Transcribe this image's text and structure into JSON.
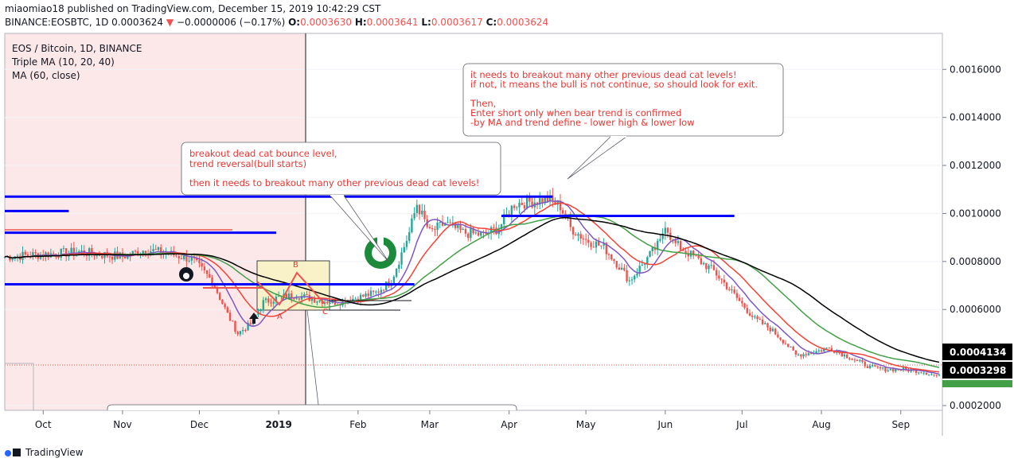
{
  "header": {
    "publisher": "miaomiao18 published on TradingView.com, December 15, 2019 10:42:29 CST",
    "symbol": "BINANCE:EOSBTC, 1D",
    "price": "0.0003624",
    "change_arrow": "▼",
    "change": "−0.0000006 (−0.17%)",
    "o_label": "O:",
    "o_value": "0.0003630",
    "h_label": "H:",
    "h_value": "0.0003641",
    "l_label": "L:",
    "l_value": "0.0003617",
    "c_label": "C:",
    "c_value": "0.0003624"
  },
  "legend": {
    "title": "EOS / Bitcoin, 1D, BINANCE",
    "ma1": "Triple MA (10, 20, 40)",
    "ma2": "MA (60, close)"
  },
  "annotations": {
    "box1": [
      "breakout dead cat bounce level,",
      "trend reversal(bull starts)",
      "",
      "then it needs to breakout many other previous dead cat levels!"
    ],
    "box2": [
      "it needs to breakout many other previous dead cat levels!",
      "if not, it means the bull is not continue, so should look for exit.",
      "",
      "Then,",
      "Enter short only when bear trend is confirmed",
      "-by MA and trend define - lower high & lower low"
    ],
    "points": [
      "B",
      "A",
      "C"
    ]
  },
  "price_tags": {
    "ma_tag": "0.0004134",
    "last_tag": "0.0003298"
  },
  "footer": {
    "brand": "TradingView"
  },
  "colors": {
    "up": "#26a69a",
    "down": "#ef5350",
    "ma10": "#7e57c2",
    "ma20": "#f44336",
    "ma40": "#43a047",
    "ma60": "#000000",
    "level": "#0000ff",
    "note_text": "#e53935",
    "highlight": "#f9f1c8",
    "history_bg": "#fce8e8"
  },
  "chart_data": {
    "type": "candlestick",
    "title": "EOS / Bitcoin, 1D, BINANCE",
    "y_ticks": [
      "0.0016000",
      "0.0014000",
      "0.0012000",
      "0.0010000",
      "0.0008000",
      "0.0006000",
      "0.0002000"
    ],
    "ylim": [
      0.00018,
      0.00175
    ],
    "x_ticks": [
      "Oct",
      "Nov",
      "Dec",
      "2019",
      "Feb",
      "Mar",
      "Apr",
      "May",
      "Jun",
      "Jul",
      "Aug",
      "Sep"
    ],
    "x_tick_dates": [
      "2018-10-01",
      "2018-11-01",
      "2018-12-01",
      "2019-01-01",
      "2019-02-01",
      "2019-03-01",
      "2019-04-01",
      "2019-05-01",
      "2019-06-01",
      "2019-07-01",
      "2019-08-01",
      "2019-09-01"
    ],
    "price_path": [
      [
        "2018-09-16",
        0.00082
      ],
      [
        "2018-10-01",
        0.00083
      ],
      [
        "2018-10-15",
        0.00084
      ],
      [
        "2018-11-01",
        0.00082
      ],
      [
        "2018-11-10",
        0.00085
      ],
      [
        "2018-11-20",
        0.00083
      ],
      [
        "2018-11-28",
        0.00081
      ],
      [
        "2018-12-06",
        0.00072
      ],
      [
        "2018-12-12",
        0.00058
      ],
      [
        "2018-12-16",
        0.0005
      ],
      [
        "2018-12-21",
        0.00054
      ],
      [
        "2018-12-26",
        0.00063
      ],
      [
        "2019-01-01",
        0.00065
      ],
      [
        "2019-01-08",
        0.00066
      ],
      [
        "2019-01-16",
        0.00064
      ],
      [
        "2019-01-24",
        0.00063
      ],
      [
        "2019-02-01",
        0.00065
      ],
      [
        "2019-02-08",
        0.00067
      ],
      [
        "2019-02-14",
        0.00072
      ],
      [
        "2019-02-21",
        0.00092
      ],
      [
        "2019-02-24",
        0.00104
      ],
      [
        "2019-03-01",
        0.00092
      ],
      [
        "2019-03-07",
        0.00096
      ],
      [
        "2019-03-14",
        0.00092
      ],
      [
        "2019-03-22",
        0.00091
      ],
      [
        "2019-03-28",
        0.00094
      ],
      [
        "2019-04-03",
        0.00104
      ],
      [
        "2019-04-10",
        0.00105
      ],
      [
        "2019-04-16",
        0.00106
      ],
      [
        "2019-04-21",
        0.00103
      ],
      [
        "2019-04-25",
        0.00094
      ],
      [
        "2019-05-01",
        0.00089
      ],
      [
        "2019-05-08",
        0.00086
      ],
      [
        "2019-05-14",
        0.00078
      ],
      [
        "2019-05-18",
        0.00072
      ],
      [
        "2019-05-24",
        0.0008
      ],
      [
        "2019-05-30",
        0.00088
      ],
      [
        "2019-06-01",
        0.00096
      ],
      [
        "2019-06-04",
        0.00088
      ],
      [
        "2019-06-12",
        0.00082
      ],
      [
        "2019-06-20",
        0.00076
      ],
      [
        "2019-06-28",
        0.00066
      ],
      [
        "2019-07-06",
        0.00056
      ],
      [
        "2019-07-12",
        0.00052
      ],
      [
        "2019-07-18",
        0.00046
      ],
      [
        "2019-07-22",
        0.00041
      ],
      [
        "2019-07-28",
        0.00042
      ],
      [
        "2019-08-04",
        0.00044
      ],
      [
        "2019-08-12",
        0.0004
      ],
      [
        "2019-08-20",
        0.00036
      ],
      [
        "2019-08-26",
        0.00035
      ],
      [
        "2019-09-02",
        0.00035
      ],
      [
        "2019-09-10",
        0.00034
      ],
      [
        "2019-09-16",
        0.00032
      ]
    ],
    "levels": [
      {
        "from": "2018-09-16",
        "to": "2019-04-18",
        "value": 0.00107
      },
      {
        "from": "2018-09-16",
        "to": "2018-10-11",
        "value": 0.00101
      },
      {
        "from": "2018-09-16",
        "to": "2018-12-31",
        "value": 0.00092
      },
      {
        "from": "2018-09-16",
        "to": "2019-02-23",
        "value": 0.000705
      },
      {
        "from": "2019-03-29",
        "to": "2019-06-28",
        "value": 0.00099
      }
    ],
    "last_price": 0.0003298,
    "ma60_last": 0.0004134
  }
}
